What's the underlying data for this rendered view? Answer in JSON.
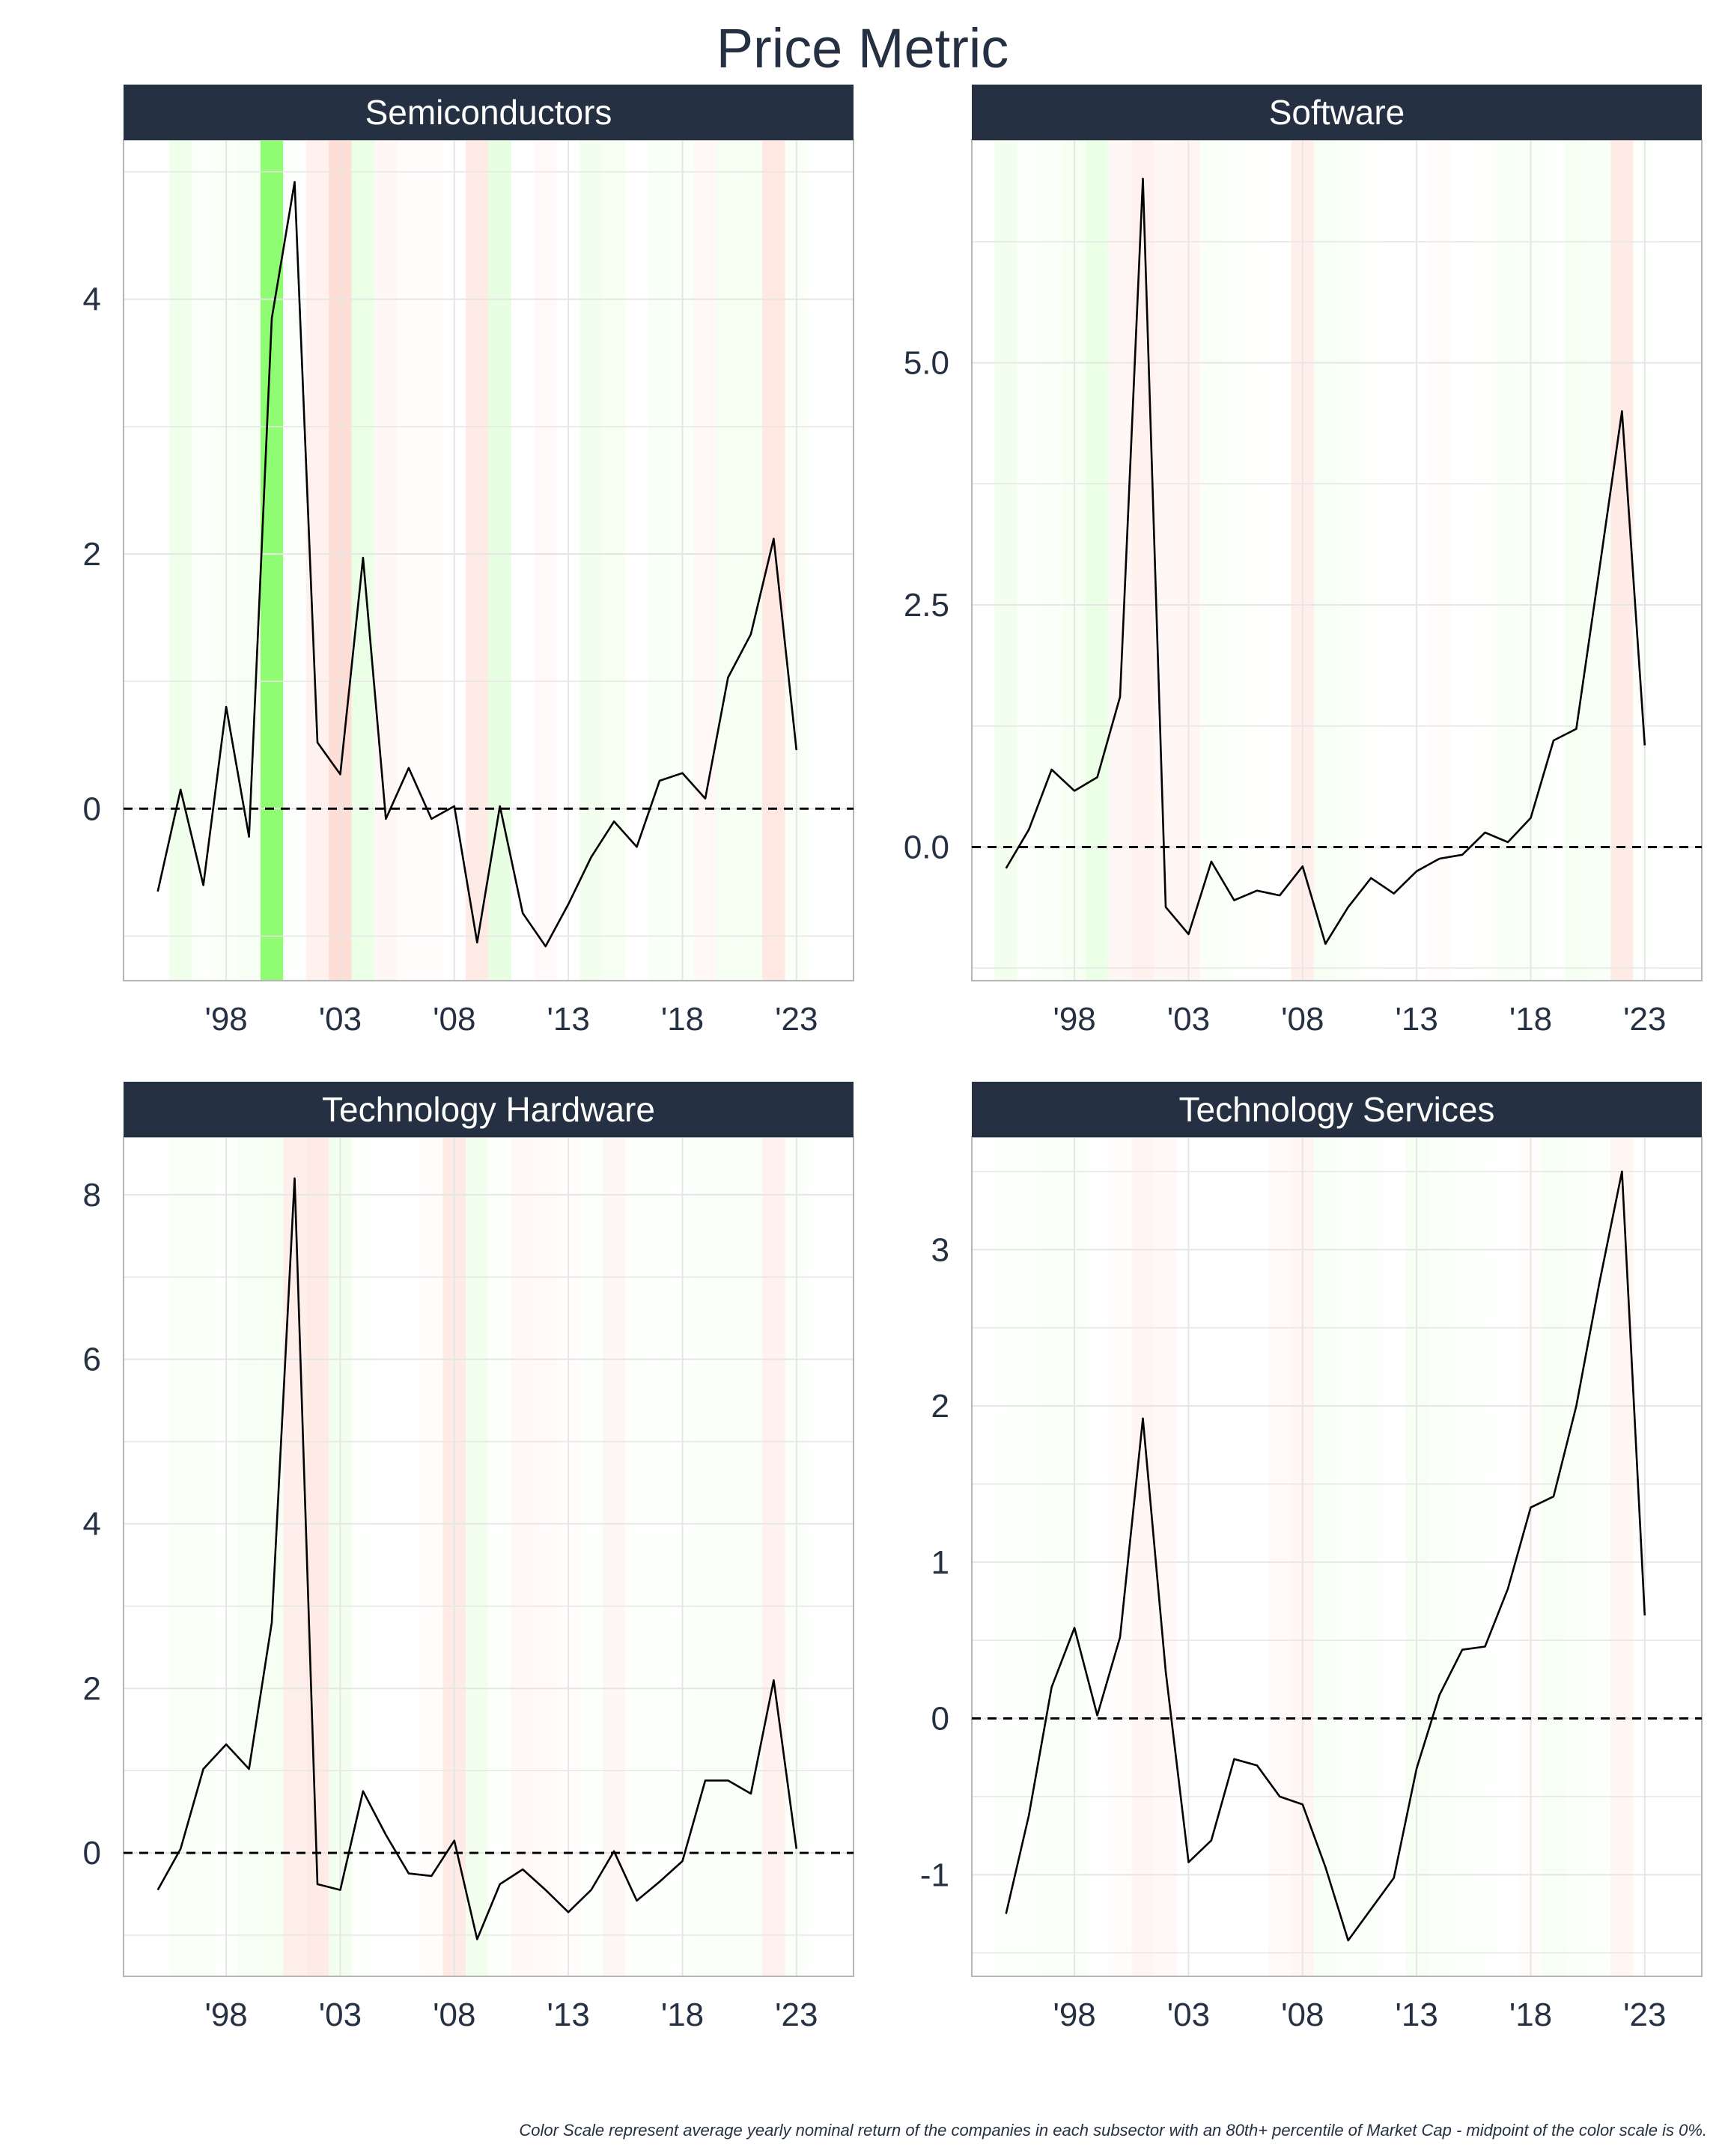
{
  "title": "Price Metric",
  "footnote": "Color Scale represent average yearly nominal return of the companies in each subsector with an 80th+ percentile of Market Cap - midpoint of the color scale is 0%.",
  "colors": {
    "strip": "#253142",
    "text": "#253142",
    "positive": "#7cfc5c",
    "negative": "#ffb4a0",
    "line": "#000000",
    "grid": "#e6e6e6"
  },
  "chart_data": [
    {
      "type": "line",
      "title": "Semiconductors",
      "x": [
        1995,
        1996,
        1997,
        1998,
        1999,
        2000,
        2001,
        2002,
        2003,
        2004,
        2005,
        2006,
        2007,
        2008,
        2009,
        2010,
        2011,
        2012,
        2013,
        2014,
        2015,
        2016,
        2017,
        2018,
        2019,
        2020,
        2021,
        2022,
        2023
      ],
      "values": [
        -0.65,
        0.15,
        -0.6,
        0.8,
        -0.22,
        3.85,
        4.92,
        0.52,
        0.27,
        1.97,
        -0.08,
        0.32,
        -0.08,
        0.02,
        -1.05,
        0.02,
        -0.82,
        -1.08,
        -0.75,
        -0.38,
        -0.1,
        -0.3,
        0.22,
        0.28,
        0.08,
        1.03,
        1.37,
        2.12,
        0.46
      ],
      "ylim": [
        -1.35,
        5.25
      ],
      "yticks": [
        0,
        2,
        4
      ],
      "ytick_labels": [
        "0",
        "2",
        "4"
      ],
      "xticks": [
        1998,
        2003,
        2008,
        2013,
        2018,
        2023
      ],
      "xtick_labels": [
        "'98",
        "'03",
        "'08",
        "'13",
        "'18",
        "'23"
      ],
      "xlim": [
        1993.5,
        2025.5
      ],
      "background_returns": [
        0.0,
        0.12,
        0.02,
        0.04,
        0.06,
        0.85,
        0.02,
        -0.08,
        -0.2,
        0.15,
        -0.05,
        -0.02,
        -0.02,
        0.0,
        -0.12,
        0.18,
        0.0,
        -0.03,
        0.0,
        0.1,
        0.08,
        0.0,
        0.05,
        0.04,
        -0.04,
        0.08,
        0.08,
        -0.14,
        0.04
      ],
      "reference_line": 0,
      "grid": true
    },
    {
      "type": "line",
      "title": "Software",
      "x": [
        1995,
        1996,
        1997,
        1998,
        1999,
        2000,
        2001,
        2002,
        2003,
        2004,
        2005,
        2006,
        2007,
        2008,
        2009,
        2010,
        2011,
        2012,
        2013,
        2014,
        2015,
        2016,
        2017,
        2018,
        2019,
        2020,
        2021,
        2022,
        2023
      ],
      "values": [
        -0.22,
        0.18,
        0.8,
        0.58,
        0.72,
        1.55,
        6.9,
        -0.62,
        -0.9,
        -0.15,
        -0.55,
        -0.45,
        -0.5,
        -0.2,
        -1.0,
        -0.62,
        -0.32,
        -0.48,
        -0.25,
        -0.12,
        -0.08,
        0.15,
        0.05,
        0.3,
        1.1,
        1.22,
        2.85,
        4.5,
        1.05
      ],
      "ylim": [
        -1.38,
        7.3
      ],
      "yticks": [
        0,
        2.5,
        5
      ],
      "ytick_labels": [
        "0.0",
        "2.5",
        "5.0"
      ],
      "xticks": [
        1998,
        2003,
        2008,
        2013,
        2018,
        2023
      ],
      "xtick_labels": [
        "'98",
        "'03",
        "'08",
        "'13",
        "'18",
        "'23"
      ],
      "xlim": [
        1993.5,
        2025.5
      ],
      "background_returns": [
        0.1,
        0.02,
        0.03,
        0.08,
        0.15,
        -0.05,
        -0.08,
        -0.05,
        -0.06,
        0.04,
        0.02,
        0.01,
        0.0,
        -0.1,
        0.06,
        0.04,
        0.01,
        0.0,
        0.0,
        -0.02,
        0.0,
        0.01,
        0.05,
        0.04,
        0.02,
        0.08,
        0.05,
        -0.12,
        0.02
      ],
      "reference_line": 0,
      "grid": true
    },
    {
      "type": "line",
      "title": "Technology Hardware",
      "x": [
        1995,
        1996,
        1997,
        1998,
        1999,
        2000,
        2001,
        2002,
        2003,
        2004,
        2005,
        2006,
        2007,
        2008,
        2009,
        2010,
        2011,
        2012,
        2013,
        2014,
        2015,
        2016,
        2017,
        2018,
        2019,
        2020,
        2021,
        2022,
        2023
      ],
      "values": [
        -0.45,
        0.05,
        1.02,
        1.32,
        1.02,
        2.8,
        8.2,
        -0.38,
        -0.45,
        0.75,
        0.22,
        -0.25,
        -0.28,
        0.15,
        -1.05,
        -0.38,
        -0.2,
        -0.45,
        -0.72,
        -0.45,
        0.02,
        -0.58,
        -0.35,
        -0.1,
        0.88,
        0.88,
        0.72,
        2.1,
        0.05
      ],
      "ylim": [
        -1.5,
        8.7
      ],
      "yticks": [
        0,
        2,
        4,
        6,
        8
      ],
      "ytick_labels": [
        "0",
        "2",
        "4",
        "6",
        "8"
      ],
      "xticks": [
        1998,
        2003,
        2008,
        2013,
        2018,
        2023
      ],
      "xtick_labels": [
        "'98",
        "'03",
        "'08",
        "'13",
        "'18",
        "'23"
      ],
      "xlim": [
        1993.5,
        2025.5
      ],
      "background_returns": [
        0.0,
        0.04,
        0.04,
        0.02,
        0.06,
        0.08,
        -0.1,
        -0.12,
        0.1,
        0.02,
        0.0,
        0.0,
        -0.02,
        -0.12,
        0.1,
        0.02,
        -0.04,
        -0.03,
        -0.02,
        0.02,
        -0.05,
        0.02,
        0.02,
        0.02,
        0.03,
        0.03,
        0.03,
        -0.08,
        0.03
      ],
      "reference_line": 0,
      "grid": true
    },
    {
      "type": "line",
      "title": "Technology Services",
      "x": [
        1995,
        1996,
        1997,
        1998,
        1999,
        2000,
        2001,
        2002,
        2003,
        2004,
        2005,
        2006,
        2007,
        2008,
        2009,
        2010,
        2011,
        2012,
        2013,
        2014,
        2015,
        2016,
        2017,
        2018,
        2019,
        2020,
        2021,
        2022,
        2023
      ],
      "values": [
        -1.25,
        -0.62,
        0.2,
        0.58,
        0.02,
        0.52,
        1.92,
        0.3,
        -0.92,
        -0.78,
        -0.26,
        -0.3,
        -0.5,
        -0.55,
        -0.95,
        -1.42,
        -1.22,
        -1.02,
        -0.32,
        0.15,
        0.44,
        0.46,
        0.83,
        1.35,
        1.42,
        2.0,
        2.78,
        3.5,
        0.66
      ],
      "ylim": [
        -1.65,
        3.72
      ],
      "yticks": [
        -1,
        0,
        1,
        2,
        3
      ],
      "ytick_labels": [
        "-1",
        "0",
        "1",
        "2",
        "3"
      ],
      "xticks": [
        1998,
        2003,
        2008,
        2013,
        2018,
        2023
      ],
      "xtick_labels": [
        "'98",
        "'03",
        "'08",
        "'13",
        "'18",
        "'23"
      ],
      "xlim": [
        1993.5,
        2025.5
      ],
      "background_returns": [
        0.02,
        0.02,
        0.03,
        0.03,
        0.0,
        -0.02,
        -0.06,
        -0.04,
        0.0,
        0.0,
        0.0,
        0.0,
        -0.03,
        -0.06,
        0.05,
        0.02,
        0.03,
        0.0,
        0.06,
        0.03,
        0.02,
        0.02,
        0.0,
        -0.02,
        0.06,
        0.03,
        0.02,
        -0.06,
        0.0
      ],
      "reference_line": 0,
      "grid": true
    }
  ]
}
